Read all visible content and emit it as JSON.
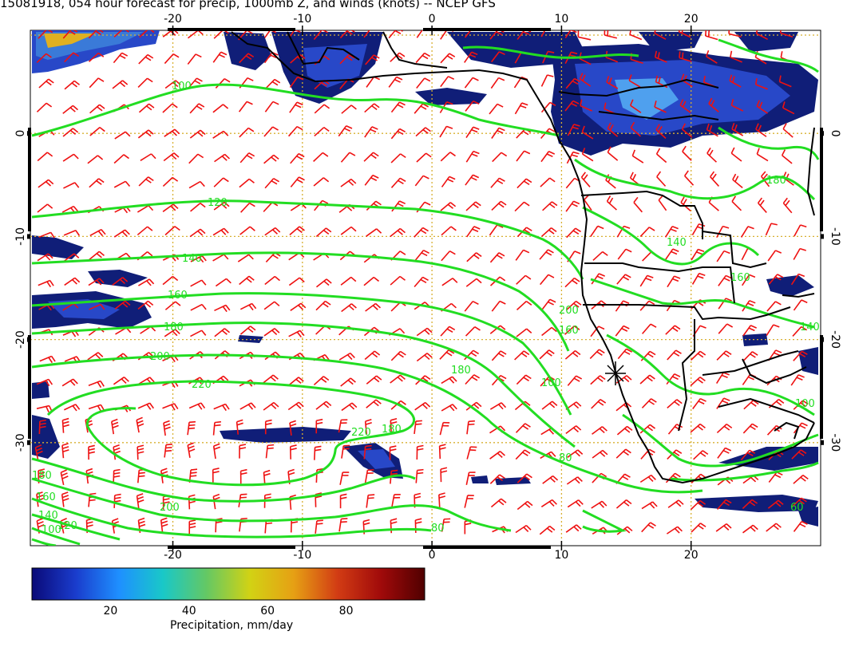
{
  "title": "15081918, 054 hour forecast for precip, 1000mb Z, and winds (knots) -- NCEP GFS",
  "axes": {
    "lon_ticks": [
      "-20",
      "-10",
      "0",
      "10",
      "20"
    ],
    "lat_ticks": [
      "0",
      "-10",
      "-20",
      "-30"
    ],
    "lon_range": [
      -31,
      30
    ],
    "lat_range": [
      -40,
      10
    ]
  },
  "colorbar": {
    "label": "Precipitation, mm/day",
    "ticks": [
      "20",
      "40",
      "60",
      "80"
    ],
    "range": [
      0,
      100
    ],
    "colors": [
      "#0a0a78",
      "#1a3ccc",
      "#1e90ff",
      "#19c8c8",
      "#64c864",
      "#d2d214",
      "#e6a014",
      "#d23c14",
      "#a00a0a",
      "#500000"
    ]
  },
  "contour_labels": [
    "100",
    "120",
    "140",
    "160",
    "180",
    "200",
    "220",
    "220",
    "180",
    "160",
    "140",
    "100",
    "120",
    "200",
    "180",
    "180",
    "200",
    "160",
    "100",
    "80",
    "60",
    "140",
    "180",
    "160",
    "140",
    "100",
    "80"
  ],
  "colors": {
    "contour": "#22dd22",
    "wind_barb": "#ee1111",
    "grid": "#d8b030",
    "precip_dark": "#101e78",
    "precip_mid": "#2848c8",
    "coast": "#000000"
  }
}
